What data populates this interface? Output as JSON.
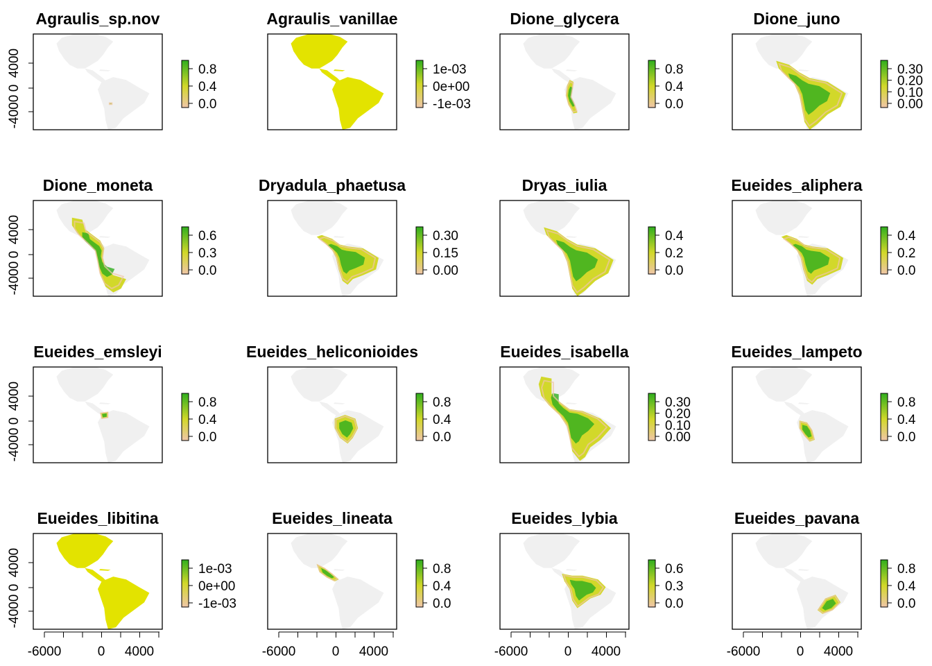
{
  "figure": {
    "type": "raster-map-grid",
    "rows": 4,
    "cols": 4,
    "axis": {
      "x_ticks": [
        "-6000",
        "0",
        "4000"
      ],
      "y_ticks": [
        "4000",
        "0",
        "-4000"
      ]
    },
    "colors": {
      "land": "#f0f0f0",
      "low": "#efc6a8",
      "mid": "#d2d82a",
      "high": "#2fae1e",
      "uniform": "#e3e300",
      "frame": "#000000"
    },
    "panels": [
      {
        "title": "Agraulis_sp.nov",
        "legend": [
          "0.8",
          "0.4",
          "0.0"
        ],
        "range": "point"
      },
      {
        "title": "Agraulis_vanillae",
        "legend": [
          "1e-03",
          "0e+00",
          "-1e-03"
        ],
        "range": "uniform"
      },
      {
        "title": "Dione_glycera",
        "legend": [
          "0.8",
          "0.4",
          "0.0"
        ],
        "range": "andes"
      },
      {
        "title": "Dione_juno",
        "legend": [
          "0.30",
          "0.20",
          "0.10",
          "0.00"
        ],
        "range": "neotropics-wide"
      },
      {
        "title": "Dione_moneta",
        "legend": [
          "0.6",
          "0.3",
          "0.0"
        ],
        "range": "moneta"
      },
      {
        "title": "Dryadula_phaetusa",
        "legend": [
          "0.30",
          "0.15",
          "0.00"
        ],
        "range": "neotropics"
      },
      {
        "title": "Dryas_iulia",
        "legend": [
          "0.4",
          "0.2",
          "0.0"
        ],
        "range": "neotropics-wide"
      },
      {
        "title": "Eueides_aliphera",
        "legend": [
          "0.4",
          "0.2",
          "0.0"
        ],
        "range": "neotropics"
      },
      {
        "title": "Eueides_emsleyi",
        "legend": [
          "0.8",
          "0.4",
          "0.0"
        ],
        "range": "small-colombia"
      },
      {
        "title": "Eueides_heliconioides",
        "legend": [
          "0.8",
          "0.4",
          "0.0"
        ],
        "range": "peru-bolivia"
      },
      {
        "title": "Eueides_isabella",
        "legend": [
          "0.30",
          "0.20",
          "0.10",
          "0.00"
        ],
        "range": "neotropics-isabella"
      },
      {
        "title": "Eueides_lampeto",
        "legend": [
          "0.8",
          "0.4",
          "0.0"
        ],
        "range": "andes-peru"
      },
      {
        "title": "Eueides_libitina",
        "legend": [
          "1e-03",
          "0e+00",
          "-1e-03"
        ],
        "range": "uniform"
      },
      {
        "title": "Eueides_lineata",
        "legend": [
          "0.8",
          "0.4",
          "0.0"
        ],
        "range": "central-america"
      },
      {
        "title": "Eueides_lybia",
        "legend": [
          "0.6",
          "0.3",
          "0.0"
        ],
        "range": "amazon"
      },
      {
        "title": "Eueides_pavana",
        "legend": [
          "0.8",
          "0.4",
          "0.0"
        ],
        "range": "se-brazil"
      }
    ]
  }
}
